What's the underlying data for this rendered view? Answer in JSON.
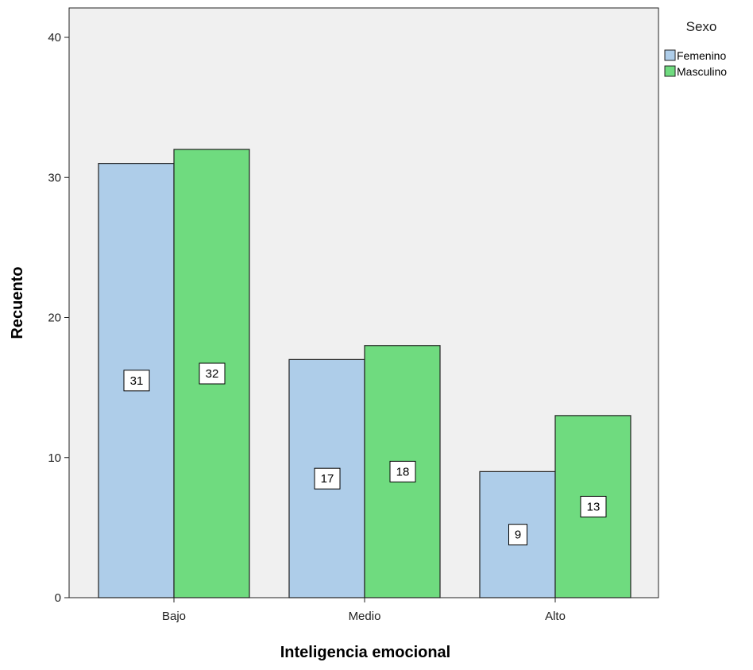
{
  "chart_data": {
    "type": "bar",
    "title": "",
    "xlabel": "Inteligencia emocional",
    "ylabel": "Recuento",
    "categories": [
      "Bajo",
      "Medio",
      "Alto"
    ],
    "series": [
      {
        "name": "Femenino",
        "values": [
          31,
          17,
          9
        ],
        "color": "#aecde9"
      },
      {
        "name": "Masculino",
        "values": [
          32,
          18,
          13
        ],
        "color": "#6fdb7f"
      }
    ],
    "ylim": [
      0,
      40
    ],
    "yticks": [
      0,
      10,
      20,
      30,
      40
    ],
    "grid": false,
    "legend": {
      "title": "Sexo",
      "placement": "top-right"
    },
    "data_labels": true,
    "plot_background": "#f0f0f0"
  }
}
